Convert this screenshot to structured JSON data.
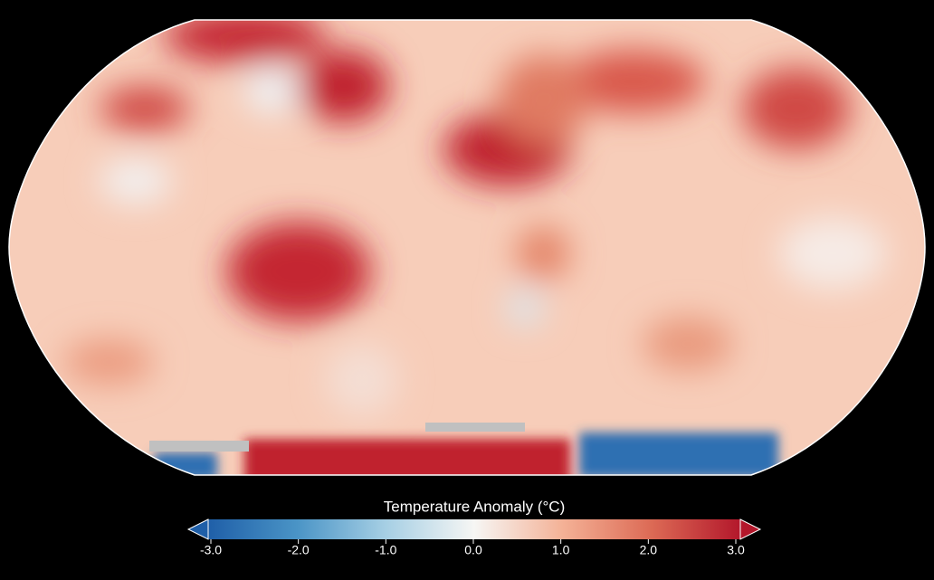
{
  "colorbar": {
    "title": "Temperature Anomaly (°C)",
    "lim": [
      -3,
      3
    ],
    "ticks": [
      {
        "value": -3,
        "label": "-3.0"
      },
      {
        "value": -2,
        "label": "-2.0"
      },
      {
        "value": -1,
        "label": "-1.0"
      },
      {
        "value": 0,
        "label": "0.0"
      },
      {
        "value": 1,
        "label": "1.0"
      },
      {
        "value": 2,
        "label": "2.0"
      },
      {
        "value": 3,
        "label": "3.0"
      }
    ],
    "colors": [
      "#1f5fa8",
      "#4a94c6",
      "#a6cfe4",
      "#f6f6f4",
      "#f4b196",
      "#dc6a55",
      "#b3172b"
    ]
  }
}
